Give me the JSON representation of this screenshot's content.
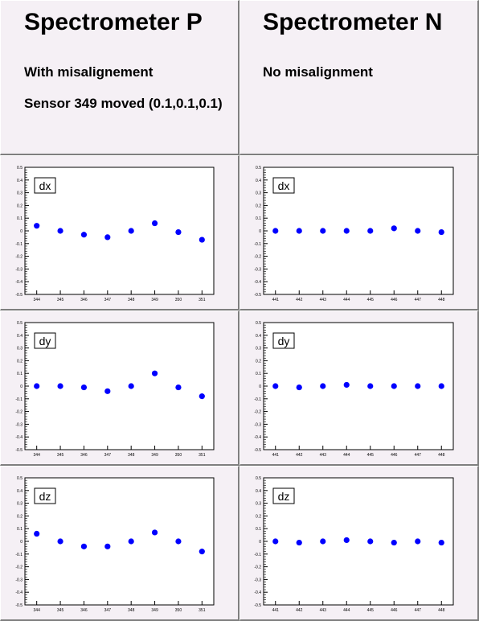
{
  "header": {
    "left": {
      "title": "Spectrometer P",
      "line1": "With misalignement",
      "line2": "Sensor 349 moved (0.1,0.1,0.1)"
    },
    "right": {
      "title": "Spectrometer N",
      "line1": "No misalignment",
      "line2": ""
    }
  },
  "colors": {
    "marker": "#0000ff",
    "pad": "#f5f0f5",
    "frame": "#ffffff"
  },
  "chart_data": [
    {
      "type": "scatter",
      "label": "dx",
      "x_ticks": [
        "344",
        "345",
        "346",
        "347",
        "348",
        "349",
        "350",
        "351"
      ],
      "y_ticks": [
        "-0.5",
        "-0.4",
        "-0.3",
        "-0.2",
        "-0.1",
        "0",
        "0.1",
        "0.2",
        "0.3",
        "0.4",
        "0.5"
      ],
      "ylim": [
        -0.5,
        0.5
      ],
      "values": [
        0.04,
        0.0,
        -0.03,
        -0.05,
        0.0,
        0.06,
        -0.01,
        -0.07
      ]
    },
    {
      "type": "scatter",
      "label": "dx",
      "x_ticks": [
        "441",
        "442",
        "443",
        "444",
        "445",
        "446",
        "447",
        "448"
      ],
      "y_ticks": [
        "-0.5",
        "-0.4",
        "-0.3",
        "-0.2",
        "-0.1",
        "0",
        "0.1",
        "0.2",
        "0.3",
        "0.4",
        "0.5"
      ],
      "ylim": [
        -0.5,
        0.5
      ],
      "values": [
        0.0,
        0.0,
        0.0,
        0.0,
        0.0,
        0.02,
        0.0,
        -0.01
      ]
    },
    {
      "type": "scatter",
      "label": "dy",
      "x_ticks": [
        "344",
        "345",
        "346",
        "347",
        "348",
        "349",
        "350",
        "351"
      ],
      "y_ticks": [
        "-0.5",
        "-0.4",
        "-0.3",
        "-0.2",
        "-0.1",
        "0",
        "0.1",
        "0.2",
        "0.3",
        "0.4",
        "0.5"
      ],
      "ylim": [
        -0.5,
        0.5
      ],
      "values": [
        0.0,
        0.0,
        -0.01,
        -0.04,
        0.0,
        0.1,
        -0.01,
        -0.08
      ]
    },
    {
      "type": "scatter",
      "label": "dy",
      "x_ticks": [
        "441",
        "442",
        "443",
        "444",
        "445",
        "446",
        "447",
        "448"
      ],
      "y_ticks": [
        "-0.5",
        "-0.4",
        "-0.3",
        "-0.2",
        "-0.1",
        "0",
        "0.1",
        "0.2",
        "0.3",
        "0.4",
        "0.5"
      ],
      "ylim": [
        -0.5,
        0.5
      ],
      "values": [
        0.0,
        -0.01,
        0.0,
        0.01,
        0.0,
        0.0,
        0.0,
        0.0
      ]
    },
    {
      "type": "scatter",
      "label": "dz",
      "x_ticks": [
        "344",
        "345",
        "346",
        "347",
        "348",
        "349",
        "350",
        "351"
      ],
      "y_ticks": [
        "-0.5",
        "-0.4",
        "-0.3",
        "-0.2",
        "-0.1",
        "0",
        "0.1",
        "0.2",
        "0.3",
        "0.4",
        "0.5"
      ],
      "ylim": [
        -0.5,
        0.5
      ],
      "values": [
        0.06,
        0.0,
        -0.04,
        -0.04,
        0.0,
        0.07,
        0.0,
        -0.08
      ]
    },
    {
      "type": "scatter",
      "label": "dz",
      "x_ticks": [
        "441",
        "442",
        "443",
        "444",
        "445",
        "446",
        "447",
        "448"
      ],
      "y_ticks": [
        "-0.5",
        "-0.4",
        "-0.3",
        "-0.2",
        "-0.1",
        "0",
        "0.1",
        "0.2",
        "0.3",
        "0.4",
        "0.5"
      ],
      "ylim": [
        -0.5,
        0.5
      ],
      "values": [
        0.0,
        -0.01,
        0.0,
        0.01,
        0.0,
        -0.01,
        0.0,
        -0.01
      ]
    }
  ]
}
